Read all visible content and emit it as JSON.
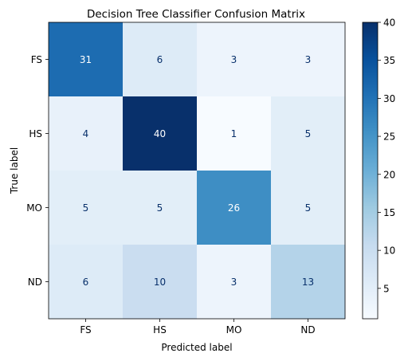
{
  "chart_data": {
    "type": "heatmap",
    "title": "Decision Tree Classifier Confusion Matrix",
    "xlabel": "Predicted label",
    "ylabel": "True label",
    "x_categories": [
      "FS",
      "HS",
      "MO",
      "ND"
    ],
    "y_categories": [
      "FS",
      "HS",
      "MO",
      "ND"
    ],
    "values": [
      [
        31,
        6,
        3,
        3
      ],
      [
        4,
        40,
        1,
        5
      ],
      [
        5,
        5,
        26,
        5
      ],
      [
        6,
        10,
        3,
        13
      ]
    ],
    "colormap": "Blues",
    "colorbar": {
      "range": [
        1,
        40
      ],
      "ticks": [
        5,
        10,
        15,
        20,
        25,
        30,
        35,
        40
      ]
    }
  }
}
